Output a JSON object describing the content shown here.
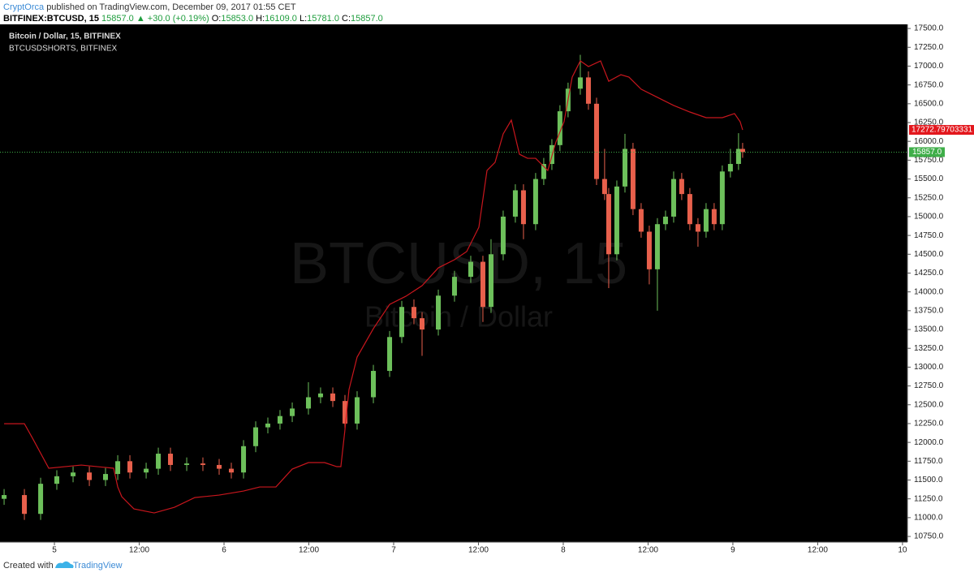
{
  "header": {
    "author": "CryptOrca",
    "published": "published on TradingView.com, December 09, 2017 01:55 CET",
    "symbol": "BITFINEX:BTCUSD, 15",
    "last": "15857.0",
    "change": "▲ +30.0 (+0.19%)",
    "open_label": "O:",
    "open": "15853.0",
    "high_label": "H:",
    "high": "16109.0",
    "low_label": "L:",
    "low": "15781.0",
    "close_label": "C:",
    "close": "15857.0"
  },
  "footer": {
    "created": "Created with",
    "brand": "TradingView"
  },
  "chart_data": {
    "type": "candlestick",
    "title": "Bitcoin / Dollar, 15, BITFINEX",
    "watermark": "BTCUSD, 15",
    "watermark_subtitle": "Bitcoin / Dollar",
    "xlim": [
      -7.7,
      120.7
    ],
    "ylim": [
      10675,
      17555
    ],
    "xticks": [
      {
        "value": 0,
        "label": "5"
      },
      {
        "value": 12,
        "label": "12:00"
      },
      {
        "value": 24,
        "label": "6"
      },
      {
        "value": 36,
        "label": "12:00"
      },
      {
        "value": 48,
        "label": "7"
      },
      {
        "value": 60,
        "label": "12:00"
      },
      {
        "value": 72,
        "label": "8"
      },
      {
        "value": 84,
        "label": "12:00"
      },
      {
        "value": 96,
        "label": "9"
      },
      {
        "value": 108,
        "label": "12:00"
      },
      {
        "value": 120,
        "label": "10"
      }
    ],
    "yticks": [
      {
        "value": 10750,
        "label": "10750.0"
      },
      {
        "value": 11000,
        "label": "11000.0"
      },
      {
        "value": 11250,
        "label": "11250.0"
      },
      {
        "value": 11500,
        "label": "11500.0"
      },
      {
        "value": 11750,
        "label": "11750.0"
      },
      {
        "value": 12000,
        "label": "12000.0"
      },
      {
        "value": 12250,
        "label": "12250.0"
      },
      {
        "value": 12500,
        "label": "12500.0"
      },
      {
        "value": 12750,
        "label": "12750.0"
      },
      {
        "value": 13000,
        "label": "13000.0"
      },
      {
        "value": 13250,
        "label": "13250.0"
      },
      {
        "value": 13500,
        "label": "13500.0"
      },
      {
        "value": 13750,
        "label": "13750.0"
      },
      {
        "value": 14000,
        "label": "14000.0"
      },
      {
        "value": 14250,
        "label": "14250.0"
      },
      {
        "value": 14500,
        "label": "14500.0"
      },
      {
        "value": 14750,
        "label": "14750.0"
      },
      {
        "value": 15000,
        "label": "15000.0"
      },
      {
        "value": 15250,
        "label": "15250.0"
      },
      {
        "value": 15500,
        "label": "15500.0"
      },
      {
        "value": 15750,
        "label": "15750.0"
      },
      {
        "value": 16000,
        "label": "16000.0"
      },
      {
        "value": 16250,
        "label": "16250.0"
      },
      {
        "value": 16500,
        "label": "16500.0"
      },
      {
        "value": 16750,
        "label": "16750.0"
      },
      {
        "value": 17000,
        "label": "17000.0"
      },
      {
        "value": 17250,
        "label": "17250.0"
      },
      {
        "value": 17500,
        "label": "17500.0"
      }
    ],
    "y2lim": [
      14432,
      18000
    ],
    "series": [
      {
        "name": "Bitcoin / Dollar",
        "up_color": "#6dc05b",
        "down_color": "#e8604c",
        "last_value_label": "15857.0",
        "x": [
          -7.12,
          -4.25,
          -1.95,
          0.34,
          2.64,
          4.94,
          7.23,
          8.96,
          10.68,
          12.98,
          14.7,
          16.42,
          18.72,
          21.01,
          23.31,
          25.03,
          26.76,
          28.48,
          30.2,
          31.92,
          33.65,
          35.94,
          37.66,
          39.39,
          41.11,
          42.83,
          45.13,
          47.43,
          49.15,
          50.87,
          52.02,
          54.32,
          56.61,
          58.91,
          60.63,
          61.78,
          63.5,
          65.22,
          66.37,
          68.09,
          69.24,
          70.39,
          71.53,
          72.68,
          74.41,
          75.56,
          76.71,
          77.85,
          78.43,
          79.58,
          80.73,
          81.87,
          83.02,
          84.17,
          85.32,
          86.47,
          87.62,
          88.76,
          89.91,
          91.06,
          92.21,
          93.35,
          94.5,
          95.65,
          96.8,
          97.38
        ],
        "open": [
          11250,
          11300,
          11050,
          11450,
          11550,
          11600,
          11500,
          11580,
          11750,
          11600,
          11650,
          11850,
          11700,
          11720,
          11700,
          11650,
          11600,
          11950,
          12200,
          12250,
          12350,
          12450,
          12600,
          12650,
          12550,
          12250,
          12600,
          12950,
          13400,
          13800,
          13650,
          13500,
          13950,
          14200,
          14400,
          13800,
          14500,
          15000,
          15350,
          14900,
          15500,
          15700,
          15950,
          16400,
          16700,
          16850,
          16500,
          15500,
          15300,
          14500,
          15400,
          15900,
          15100,
          14800,
          14300,
          14900,
          15000,
          15500,
          15300,
          14900,
          14800,
          15100,
          14900,
          15600,
          15700,
          15900
        ],
        "high": [
          11380,
          11380,
          11530,
          11630,
          11680,
          11680,
          11660,
          11830,
          11830,
          11730,
          11930,
          11930,
          11800,
          11800,
          11780,
          11730,
          12030,
          12280,
          12330,
          12430,
          12530,
          12800,
          12730,
          12730,
          12630,
          12680,
          13030,
          13480,
          13880,
          13900,
          13730,
          14030,
          14280,
          14480,
          14480,
          14700,
          15080,
          15430,
          15430,
          15580,
          15780,
          16030,
          16480,
          16780,
          17150,
          16930,
          16580,
          15900,
          15380,
          15480,
          16100,
          15980,
          15180,
          14880,
          14980,
          15080,
          15600,
          15580,
          15380,
          14980,
          15180,
          15180,
          15680,
          15900,
          16109,
          15980
        ],
        "low": [
          11170,
          10970,
          10970,
          11370,
          11470,
          11420,
          11420,
          11500,
          11520,
          11520,
          11570,
          11620,
          11620,
          11620,
          11570,
          11520,
          11520,
          11870,
          12120,
          12170,
          12270,
          12370,
          12520,
          12470,
          12170,
          12170,
          12520,
          12870,
          13320,
          13570,
          13150,
          13420,
          13870,
          14120,
          13600,
          13720,
          14420,
          14920,
          14700,
          14820,
          15420,
          15620,
          15870,
          16320,
          16620,
          16420,
          15420,
          15220,
          14050,
          14420,
          15320,
          15020,
          14720,
          14100,
          13750,
          14820,
          14920,
          15220,
          14820,
          14600,
          14720,
          14820,
          14820,
          15520,
          15620,
          15781
        ],
        "close": [
          11300,
          11050,
          11450,
          11550,
          11600,
          11500,
          11580,
          11750,
          11600,
          11650,
          11850,
          11700,
          11720,
          11700,
          11650,
          11600,
          11950,
          12200,
          12250,
          12350,
          12450,
          12600,
          12650,
          12550,
          12250,
          12600,
          12950,
          13400,
          13800,
          13650,
          13500,
          13950,
          14200,
          14400,
          13800,
          14500,
          15000,
          15350,
          14900,
          15500,
          15700,
          15950,
          16400,
          16700,
          16850,
          16500,
          15500,
          15300,
          14500,
          15400,
          15900,
          15100,
          14800,
          14300,
          14900,
          15000,
          15500,
          15300,
          14900,
          14800,
          15100,
          14900,
          15600,
          15700,
          15900,
          15857
        ]
      },
      {
        "name": "BTCUSDSHORTS, BITFINEX",
        "type": "line",
        "axis": "y2",
        "color": "#c8161d",
        "last_value_label": "17272.79703331",
        "x": [
          -7.12,
          -4.25,
          -3.1,
          -0.8,
          3.79,
          8.38,
          8.96,
          9.53,
          11.25,
          14.12,
          16.99,
          19.86,
          23.3,
          26.75,
          29.05,
          31.34,
          33.64,
          35.94,
          38.23,
          39.96,
          40.53,
          41.1,
          41.68,
          42.83,
          45.13,
          47.43,
          49.72,
          52.02,
          54.32,
          56.61,
          58.33,
          60.06,
          61.21,
          62.35,
          63.5,
          64.65,
          65.8,
          66.94,
          68.09,
          69.81,
          70.96,
          72.11,
          73.26,
          74.41,
          75.56,
          77.28,
          78.43,
          80.15,
          81.3,
          83.02,
          85.32,
          87.62,
          89.91,
          92.21,
          94.51,
          96.23,
          97.03,
          97.38
        ],
        "values": [
          15248,
          15248,
          15148,
          14941,
          14963,
          14941,
          14812,
          14745,
          14661,
          14633,
          14672,
          14739,
          14756,
          14784,
          14812,
          14812,
          14935,
          14980,
          14980,
          14952,
          14952,
          15203,
          15483,
          15707,
          15903,
          16070,
          16126,
          16199,
          16322,
          16378,
          16434,
          16602,
          16993,
          17049,
          17245,
          17340,
          17105,
          17077,
          17077,
          16993,
          17189,
          17329,
          17636,
          17748,
          17709,
          17748,
          17608,
          17653,
          17636,
          17553,
          17497,
          17441,
          17396,
          17357,
          17357,
          17385,
          17329,
          17272.79703331
        ]
      }
    ]
  }
}
